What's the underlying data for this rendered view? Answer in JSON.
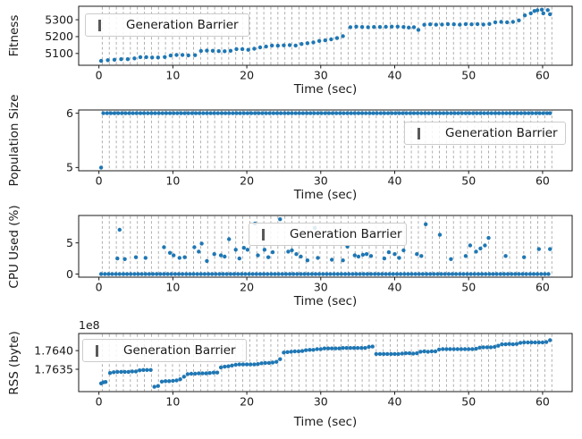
{
  "figure": {
    "background": "#ffffff",
    "point_color": "#1f77b4",
    "grid_color": "#a6a6a6",
    "spine_color": "#1a1a1a",
    "legend_marker": "vertical-line",
    "barriers_t": [
      0.45,
      1.4,
      2.35,
      3.3,
      4.25,
      5.2,
      6.15,
      7.1,
      8.05,
      9.0,
      9.95,
      10.9,
      11.85,
      12.8,
      13.75,
      14.7,
      15.65,
      16.6,
      17.55,
      18.5,
      19.45,
      20.4,
      21.35,
      22.3,
      23.25,
      24.2,
      25.15,
      26.1,
      27.05,
      28.0,
      28.95,
      29.9,
      30.85,
      31.8,
      32.75,
      33.7,
      34.65,
      35.6,
      36.55,
      37.5,
      38.45,
      39.4,
      40.35,
      41.3,
      42.25,
      43.2,
      44.15,
      45.1,
      46.05,
      47.0,
      47.95,
      48.9,
      49.85,
      50.8,
      51.75,
      52.7,
      53.65,
      54.6,
      55.55,
      56.5,
      57.45,
      58.4,
      59.35,
      60.3,
      61.25
    ]
  },
  "chart_data": [
    {
      "type": "scatter",
      "ylabel": "Fitness",
      "xlabel": "Time (sec)",
      "legend_label": "Generation Barrier",
      "xlim": [
        -2.74,
        64.0
      ],
      "ylim": [
        5030,
        5380
      ],
      "xticks": [
        {
          "v": 0,
          "label": "0"
        },
        {
          "v": 10,
          "label": "10"
        },
        {
          "v": 20,
          "label": "20"
        },
        {
          "v": 30,
          "label": "30"
        },
        {
          "v": 40,
          "label": "40"
        },
        {
          "v": 50,
          "label": "50"
        },
        {
          "v": 60,
          "label": "60"
        }
      ],
      "yticks": [
        {
          "v": 5100,
          "label": "5100"
        },
        {
          "v": 5200,
          "label": "5200"
        },
        {
          "v": 5300,
          "label": "5300"
        }
      ],
      "grid": "vertical-dashed",
      "points": [
        [
          0.3,
          5056
        ],
        [
          1.2,
          5060
        ],
        [
          2.1,
          5063
        ],
        [
          3,
          5066
        ],
        [
          3.9,
          5066
        ],
        [
          4.8,
          5071
        ],
        [
          5.6,
          5078
        ],
        [
          6.4,
          5078
        ],
        [
          7.2,
          5076
        ],
        [
          8,
          5076
        ],
        [
          8.9,
          5079
        ],
        [
          9.7,
          5088
        ],
        [
          10.5,
          5091
        ],
        [
          11.3,
          5091
        ],
        [
          12.1,
          5089
        ],
        [
          13,
          5090
        ],
        [
          13.8,
          5115
        ],
        [
          14.6,
          5117
        ],
        [
          15.4,
          5116
        ],
        [
          16.2,
          5114
        ],
        [
          17,
          5113
        ],
        [
          17.8,
          5116
        ],
        [
          18.6,
          5126
        ],
        [
          19.4,
          5126
        ],
        [
          20.2,
          5122
        ],
        [
          21,
          5128
        ],
        [
          21.8,
          5136
        ],
        [
          22.6,
          5141
        ],
        [
          23.4,
          5147
        ],
        [
          24.2,
          5146
        ],
        [
          25,
          5148
        ],
        [
          25.8,
          5150
        ],
        [
          26.6,
          5147
        ],
        [
          27.4,
          5156
        ],
        [
          28.2,
          5161
        ],
        [
          29,
          5166
        ],
        [
          29.8,
          5174
        ],
        [
          30.6,
          5178
        ],
        [
          31.4,
          5184
        ],
        [
          32.2,
          5191
        ],
        [
          33,
          5203
        ],
        [
          34,
          5256
        ],
        [
          34.8,
          5259
        ],
        [
          35.6,
          5257
        ],
        [
          36.4,
          5256
        ],
        [
          37.2,
          5257
        ],
        [
          38,
          5257
        ],
        [
          38.8,
          5258
        ],
        [
          39.6,
          5259
        ],
        [
          40.4,
          5259
        ],
        [
          41.2,
          5257
        ],
        [
          41.9,
          5254
        ],
        [
          42.6,
          5256
        ],
        [
          43.2,
          5240
        ],
        [
          44,
          5270
        ],
        [
          44.8,
          5273
        ],
        [
          45.6,
          5271
        ],
        [
          46.4,
          5272
        ],
        [
          47.2,
          5274
        ],
        [
          48,
          5273
        ],
        [
          48.8,
          5271
        ],
        [
          49.6,
          5274
        ],
        [
          50.4,
          5273
        ],
        [
          51.2,
          5274
        ],
        [
          52,
          5272
        ],
        [
          52.8,
          5275
        ],
        [
          53.6,
          5285
        ],
        [
          54.4,
          5287
        ],
        [
          55.2,
          5285
        ],
        [
          56,
          5287
        ],
        [
          56.8,
          5296
        ],
        [
          57.6,
          5326
        ],
        [
          58.4,
          5338
        ],
        [
          58.9,
          5352
        ],
        [
          59.3,
          5356
        ],
        [
          59.9,
          5360
        ],
        [
          60.1,
          5338
        ],
        [
          60.7,
          5357
        ],
        [
          61,
          5333
        ]
      ]
    },
    {
      "type": "scatter",
      "ylabel": "Population Size",
      "xlabel": "Time (sec)",
      "legend_label": "Generation Barrier",
      "xlim": [
        -2.74,
        64.0
      ],
      "ylim": [
        4.94,
        6.06
      ],
      "xticks": [
        {
          "v": 0,
          "label": "0"
        },
        {
          "v": 10,
          "label": "10"
        },
        {
          "v": 20,
          "label": "20"
        },
        {
          "v": 30,
          "label": "30"
        },
        {
          "v": 40,
          "label": "40"
        },
        {
          "v": 50,
          "label": "50"
        },
        {
          "v": 60,
          "label": "60"
        }
      ],
      "yticks": [
        {
          "v": 5,
          "label": "5"
        },
        {
          "v": 6,
          "label": "6"
        }
      ],
      "grid": "vertical-dashed",
      "runs": [
        {
          "from": 0.6,
          "to": 61,
          "step": 0.5,
          "value": 6
        }
      ],
      "points": [
        [
          0.3,
          5
        ],
        [
          61,
          6
        ]
      ]
    },
    {
      "type": "scatter",
      "ylabel": "CPU Used (%)",
      "xlabel": "Time (sec)",
      "legend_label": "Generation Barrier",
      "xlim": [
        -2.74,
        64.0
      ],
      "ylim": [
        -0.5,
        9.4
      ],
      "xticks": [
        {
          "v": 0,
          "label": "0"
        },
        {
          "v": 10,
          "label": "10"
        },
        {
          "v": 20,
          "label": "20"
        },
        {
          "v": 30,
          "label": "30"
        },
        {
          "v": 40,
          "label": "40"
        },
        {
          "v": 50,
          "label": "50"
        },
        {
          "v": 60,
          "label": "60"
        }
      ],
      "yticks": [
        {
          "v": 0,
          "label": "0"
        },
        {
          "v": 5,
          "label": "5"
        }
      ],
      "grid": "vertical-dashed",
      "runs": [
        {
          "from": 0.3,
          "to": 61,
          "step": 0.5,
          "value": 0
        }
      ],
      "points": [
        [
          2.5,
          2.5
        ],
        [
          2.8,
          7.1
        ],
        [
          3.5,
          2.4
        ],
        [
          5,
          2.7
        ],
        [
          6.3,
          2.6
        ],
        [
          8.8,
          4.3
        ],
        [
          9.6,
          3.4
        ],
        [
          10.1,
          3.0
        ],
        [
          10.9,
          2.6
        ],
        [
          11.6,
          2.7
        ],
        [
          12.9,
          4.3
        ],
        [
          13.5,
          3.6
        ],
        [
          13.9,
          4.9
        ],
        [
          14.6,
          2.1
        ],
        [
          15.6,
          3.2
        ],
        [
          16.5,
          3.0
        ],
        [
          17,
          2.8
        ],
        [
          17.6,
          5.6
        ],
        [
          18.5,
          3.9
        ],
        [
          19,
          2.5
        ],
        [
          19.6,
          4.2
        ],
        [
          20.1,
          3.9
        ],
        [
          21.1,
          8.1
        ],
        [
          21.5,
          3.0
        ],
        [
          22.4,
          3.9
        ],
        [
          22.9,
          2.7
        ],
        [
          23.5,
          3.5
        ],
        [
          24.5,
          8.8
        ],
        [
          25.6,
          3.6
        ],
        [
          26.1,
          3.8
        ],
        [
          26.7,
          3.2
        ],
        [
          27.3,
          2.8
        ],
        [
          28.2,
          2.2
        ],
        [
          29.2,
          7.4
        ],
        [
          29.6,
          2.6
        ],
        [
          31.5,
          2.3
        ],
        [
          33,
          2.2
        ],
        [
          33.6,
          4.4
        ],
        [
          34.6,
          3.0
        ],
        [
          35.1,
          2.8
        ],
        [
          35.7,
          3.1
        ],
        [
          36.2,
          3.2
        ],
        [
          36.8,
          2.9
        ],
        [
          38.6,
          2.5
        ],
        [
          39.2,
          3.5
        ],
        [
          40,
          3.2
        ],
        [
          40.6,
          2.6
        ],
        [
          41.2,
          3.8
        ],
        [
          43,
          3.2
        ],
        [
          43.6,
          2.9
        ],
        [
          44.2,
          8.0
        ],
        [
          46.1,
          6.3
        ],
        [
          47.6,
          2.4
        ],
        [
          49.6,
          2.9
        ],
        [
          50.2,
          4.6
        ],
        [
          51,
          3.6
        ],
        [
          51.6,
          4.1
        ],
        [
          52.2,
          4.6
        ],
        [
          52.7,
          5.8
        ],
        [
          55,
          2.9
        ],
        [
          57.5,
          2.7
        ],
        [
          59.5,
          4.0
        ],
        [
          61,
          4.0
        ]
      ]
    },
    {
      "type": "scatter",
      "ylabel": "RSS (byte)",
      "xlabel": "Time (sec)",
      "legend_label": "Generation Barrier",
      "offset_label": "1e8",
      "unit_scale": "1e8",
      "xlim": [
        -2.74,
        64.0
      ],
      "ylim": [
        1.7629,
        1.76446
      ],
      "xticks": [
        {
          "v": 0,
          "label": "0"
        },
        {
          "v": 10,
          "label": "10"
        },
        {
          "v": 20,
          "label": "20"
        },
        {
          "v": 30,
          "label": "30"
        },
        {
          "v": 40,
          "label": "40"
        },
        {
          "v": 50,
          "label": "50"
        },
        {
          "v": 60,
          "label": "60"
        }
      ],
      "yticks": [
        {
          "v": 1.7635,
          "label": "1.7635"
        },
        {
          "v": 1.764,
          "label": "1.7640"
        }
      ],
      "grid": "vertical-dashed",
      "points": [
        [
          0.3,
          1.76312
        ],
        [
          0.6,
          1.76315
        ],
        [
          0.9,
          1.76316
        ],
        [
          1.5,
          1.7634
        ],
        [
          2.0,
          1.76342
        ],
        [
          2.5,
          1.76343
        ],
        [
          3.0,
          1.76343
        ],
        [
          3.5,
          1.76343
        ],
        [
          4.0,
          1.76343
        ],
        [
          4.5,
          1.76344
        ],
        [
          5.0,
          1.76344
        ],
        [
          5.5,
          1.76347
        ],
        [
          6.0,
          1.76348
        ],
        [
          6.5,
          1.76348
        ],
        [
          7.0,
          1.76348
        ],
        [
          7.5,
          1.76303
        ],
        [
          8.0,
          1.76305
        ],
        [
          8.5,
          1.76317
        ],
        [
          9.0,
          1.76318
        ],
        [
          9.5,
          1.76318
        ],
        [
          10.0,
          1.76319
        ],
        [
          10.5,
          1.7632
        ],
        [
          11.0,
          1.76323
        ],
        [
          11.5,
          1.7633
        ],
        [
          12.0,
          1.76337
        ],
        [
          12.5,
          1.76338
        ],
        [
          13.0,
          1.76338
        ],
        [
          13.5,
          1.76339
        ],
        [
          14.0,
          1.76339
        ],
        [
          14.5,
          1.76339
        ],
        [
          15.0,
          1.7634
        ],
        [
          15.5,
          1.76341
        ],
        [
          16.0,
          1.76341
        ],
        [
          16.5,
          1.76355
        ],
        [
          17.0,
          1.76357
        ],
        [
          17.5,
          1.76358
        ],
        [
          18.0,
          1.7636
        ],
        [
          18.5,
          1.76362
        ],
        [
          19.0,
          1.76363
        ],
        [
          19.5,
          1.76363
        ],
        [
          20.0,
          1.76363
        ],
        [
          20.5,
          1.76363
        ],
        [
          21.0,
          1.76363
        ],
        [
          21.5,
          1.76364
        ],
        [
          22.0,
          1.76366
        ],
        [
          22.5,
          1.76367
        ],
        [
          23.0,
          1.76367
        ],
        [
          23.5,
          1.76368
        ],
        [
          24.0,
          1.7637
        ],
        [
          24.5,
          1.76377
        ],
        [
          25.0,
          1.76395
        ],
        [
          25.5,
          1.76396
        ],
        [
          26.0,
          1.76397
        ],
        [
          26.5,
          1.76398
        ],
        [
          27.0,
          1.76398
        ],
        [
          27.5,
          1.76399
        ],
        [
          28.0,
          1.76401
        ],
        [
          28.5,
          1.76402
        ],
        [
          29.0,
          1.76402
        ],
        [
          29.5,
          1.76404
        ],
        [
          30.0,
          1.76404
        ],
        [
          30.5,
          1.76406
        ],
        [
          31.0,
          1.76406
        ],
        [
          31.5,
          1.76406
        ],
        [
          32.0,
          1.76406
        ],
        [
          32.5,
          1.76406
        ],
        [
          33.0,
          1.76407
        ],
        [
          33.5,
          1.76407
        ],
        [
          34.0,
          1.76407
        ],
        [
          34.5,
          1.76407
        ],
        [
          35.0,
          1.76407
        ],
        [
          35.5,
          1.76407
        ],
        [
          36.0,
          1.76407
        ],
        [
          36.5,
          1.7641
        ],
        [
          37.0,
          1.76411
        ],
        [
          37.5,
          1.76391
        ],
        [
          38.0,
          1.76391
        ],
        [
          38.5,
          1.76391
        ],
        [
          39.0,
          1.76391
        ],
        [
          39.5,
          1.76391
        ],
        [
          40.0,
          1.76391
        ],
        [
          40.5,
          1.76391
        ],
        [
          41.0,
          1.76392
        ],
        [
          41.5,
          1.76393
        ],
        [
          42.0,
          1.76393
        ],
        [
          42.5,
          1.76392
        ],
        [
          43.0,
          1.76393
        ],
        [
          43.5,
          1.76397
        ],
        [
          44.0,
          1.76398
        ],
        [
          44.5,
          1.76397
        ],
        [
          45.0,
          1.76398
        ],
        [
          45.5,
          1.76398
        ],
        [
          46.0,
          1.76403
        ],
        [
          46.5,
          1.76404
        ],
        [
          47.0,
          1.76404
        ],
        [
          47.5,
          1.76404
        ],
        [
          48.0,
          1.76404
        ],
        [
          48.5,
          1.76404
        ],
        [
          49.0,
          1.76404
        ],
        [
          49.5,
          1.76404
        ],
        [
          50.0,
          1.76404
        ],
        [
          50.5,
          1.76404
        ],
        [
          51.0,
          1.76405
        ],
        [
          51.5,
          1.76408
        ],
        [
          52.0,
          1.76409
        ],
        [
          52.5,
          1.76409
        ],
        [
          53.0,
          1.76409
        ],
        [
          53.5,
          1.7641
        ],
        [
          54.0,
          1.76413
        ],
        [
          54.5,
          1.76417
        ],
        [
          55.0,
          1.76417
        ],
        [
          55.5,
          1.76418
        ],
        [
          56.0,
          1.76417
        ],
        [
          56.5,
          1.76418
        ],
        [
          57.0,
          1.76421
        ],
        [
          57.5,
          1.76422
        ],
        [
          58.0,
          1.76422
        ],
        [
          58.5,
          1.76422
        ],
        [
          59.0,
          1.76422
        ],
        [
          59.5,
          1.76422
        ],
        [
          60.0,
          1.76422
        ],
        [
          60.5,
          1.76423
        ],
        [
          61.0,
          1.76428
        ]
      ]
    }
  ]
}
